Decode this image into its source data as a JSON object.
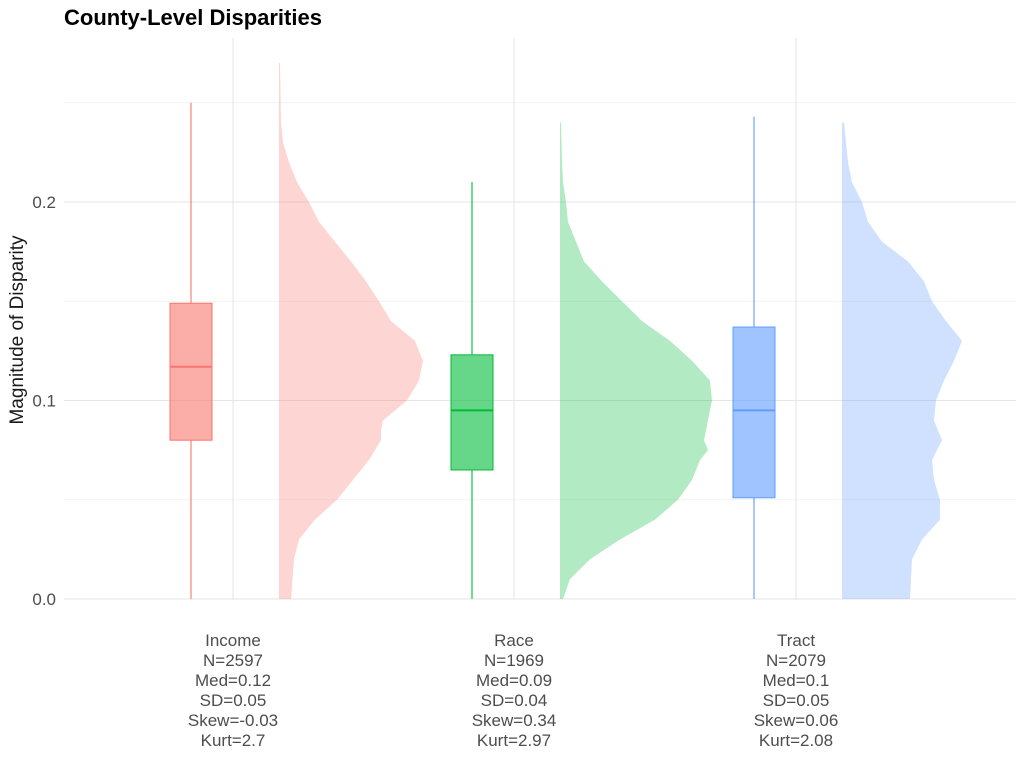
{
  "chart_data": {
    "type": "raincloud",
    "title": "County-Level Disparities",
    "ylabel": "Magnitude of Disparity",
    "xlabel": "",
    "ylim": [
      0,
      0.27
    ],
    "yticks": [
      0.0,
      0.1,
      0.2
    ],
    "ytick_labels": [
      "0.0",
      "0.1",
      "0.2"
    ],
    "grid": true,
    "legend": "none",
    "categories": [
      {
        "name": "Income",
        "color": "#F8766D",
        "stats": [
          "N=2597",
          "Med=0.12",
          "SD=0.05",
          "Skew=-0.03",
          "Kurt=2.7"
        ],
        "box": {
          "whisker_low": 0.0,
          "q1": 0.08,
          "median": 0.117,
          "q3": 0.149,
          "whisker_high": 0.25
        },
        "density": [
          [
            0.0,
            0.012
          ],
          [
            0.02,
            0.015
          ],
          [
            0.03,
            0.02
          ],
          [
            0.04,
            0.036
          ],
          [
            0.05,
            0.058
          ],
          [
            0.06,
            0.074
          ],
          [
            0.07,
            0.09
          ],
          [
            0.08,
            0.102
          ],
          [
            0.085,
            0.102
          ],
          [
            0.09,
            0.104
          ],
          [
            0.1,
            0.128
          ],
          [
            0.11,
            0.14
          ],
          [
            0.12,
            0.144
          ],
          [
            0.13,
            0.136
          ],
          [
            0.14,
            0.112
          ],
          [
            0.15,
            0.1
          ],
          [
            0.16,
            0.087
          ],
          [
            0.17,
            0.072
          ],
          [
            0.18,
            0.056
          ],
          [
            0.19,
            0.04
          ],
          [
            0.2,
            0.03
          ],
          [
            0.21,
            0.018
          ],
          [
            0.22,
            0.01
          ],
          [
            0.23,
            0.004
          ],
          [
            0.24,
            0.002
          ],
          [
            0.27,
            0.001
          ]
        ]
      },
      {
        "name": "Race",
        "color": "#00BA38",
        "stats": [
          "N=1969",
          "Med=0.09",
          "SD=0.04",
          "Skew=0.34",
          "Kurt=2.97"
        ],
        "box": {
          "whisker_low": 0.0,
          "q1": 0.065,
          "median": 0.095,
          "q3": 0.123,
          "whisker_high": 0.21
        },
        "density": [
          [
            0.0,
            0.003
          ],
          [
            0.01,
            0.01
          ],
          [
            0.02,
            0.03
          ],
          [
            0.03,
            0.06
          ],
          [
            0.04,
            0.095
          ],
          [
            0.05,
            0.118
          ],
          [
            0.06,
            0.132
          ],
          [
            0.07,
            0.14
          ],
          [
            0.075,
            0.148
          ],
          [
            0.08,
            0.144
          ],
          [
            0.09,
            0.148
          ],
          [
            0.1,
            0.152
          ],
          [
            0.11,
            0.15
          ],
          [
            0.12,
            0.132
          ],
          [
            0.13,
            0.11
          ],
          [
            0.14,
            0.082
          ],
          [
            0.15,
            0.062
          ],
          [
            0.16,
            0.042
          ],
          [
            0.17,
            0.024
          ],
          [
            0.18,
            0.016
          ],
          [
            0.19,
            0.008
          ],
          [
            0.2,
            0.006
          ],
          [
            0.21,
            0.003
          ],
          [
            0.22,
            0.002
          ],
          [
            0.24,
            0.001
          ]
        ]
      },
      {
        "name": "Tract",
        "color": "#619CFF",
        "stats": [
          "N=2079",
          "Med=0.1",
          "SD=0.05",
          "Skew=0.06",
          "Kurt=2.08"
        ],
        "box": {
          "whisker_low": 0.0,
          "q1": 0.051,
          "median": 0.095,
          "q3": 0.137,
          "whisker_high": 0.243
        },
        "density": [
          [
            0.0,
            0.068
          ],
          [
            0.02,
            0.07
          ],
          [
            0.03,
            0.08
          ],
          [
            0.04,
            0.098
          ],
          [
            0.05,
            0.098
          ],
          [
            0.06,
            0.092
          ],
          [
            0.07,
            0.09
          ],
          [
            0.08,
            0.1
          ],
          [
            0.09,
            0.092
          ],
          [
            0.1,
            0.094
          ],
          [
            0.11,
            0.102
          ],
          [
            0.12,
            0.112
          ],
          [
            0.13,
            0.12
          ],
          [
            0.14,
            0.104
          ],
          [
            0.15,
            0.09
          ],
          [
            0.16,
            0.082
          ],
          [
            0.17,
            0.066
          ],
          [
            0.18,
            0.04
          ],
          [
            0.19,
            0.026
          ],
          [
            0.2,
            0.02
          ],
          [
            0.21,
            0.01
          ],
          [
            0.22,
            0.006
          ],
          [
            0.23,
            0.004
          ],
          [
            0.24,
            0.002
          ]
        ]
      }
    ]
  }
}
